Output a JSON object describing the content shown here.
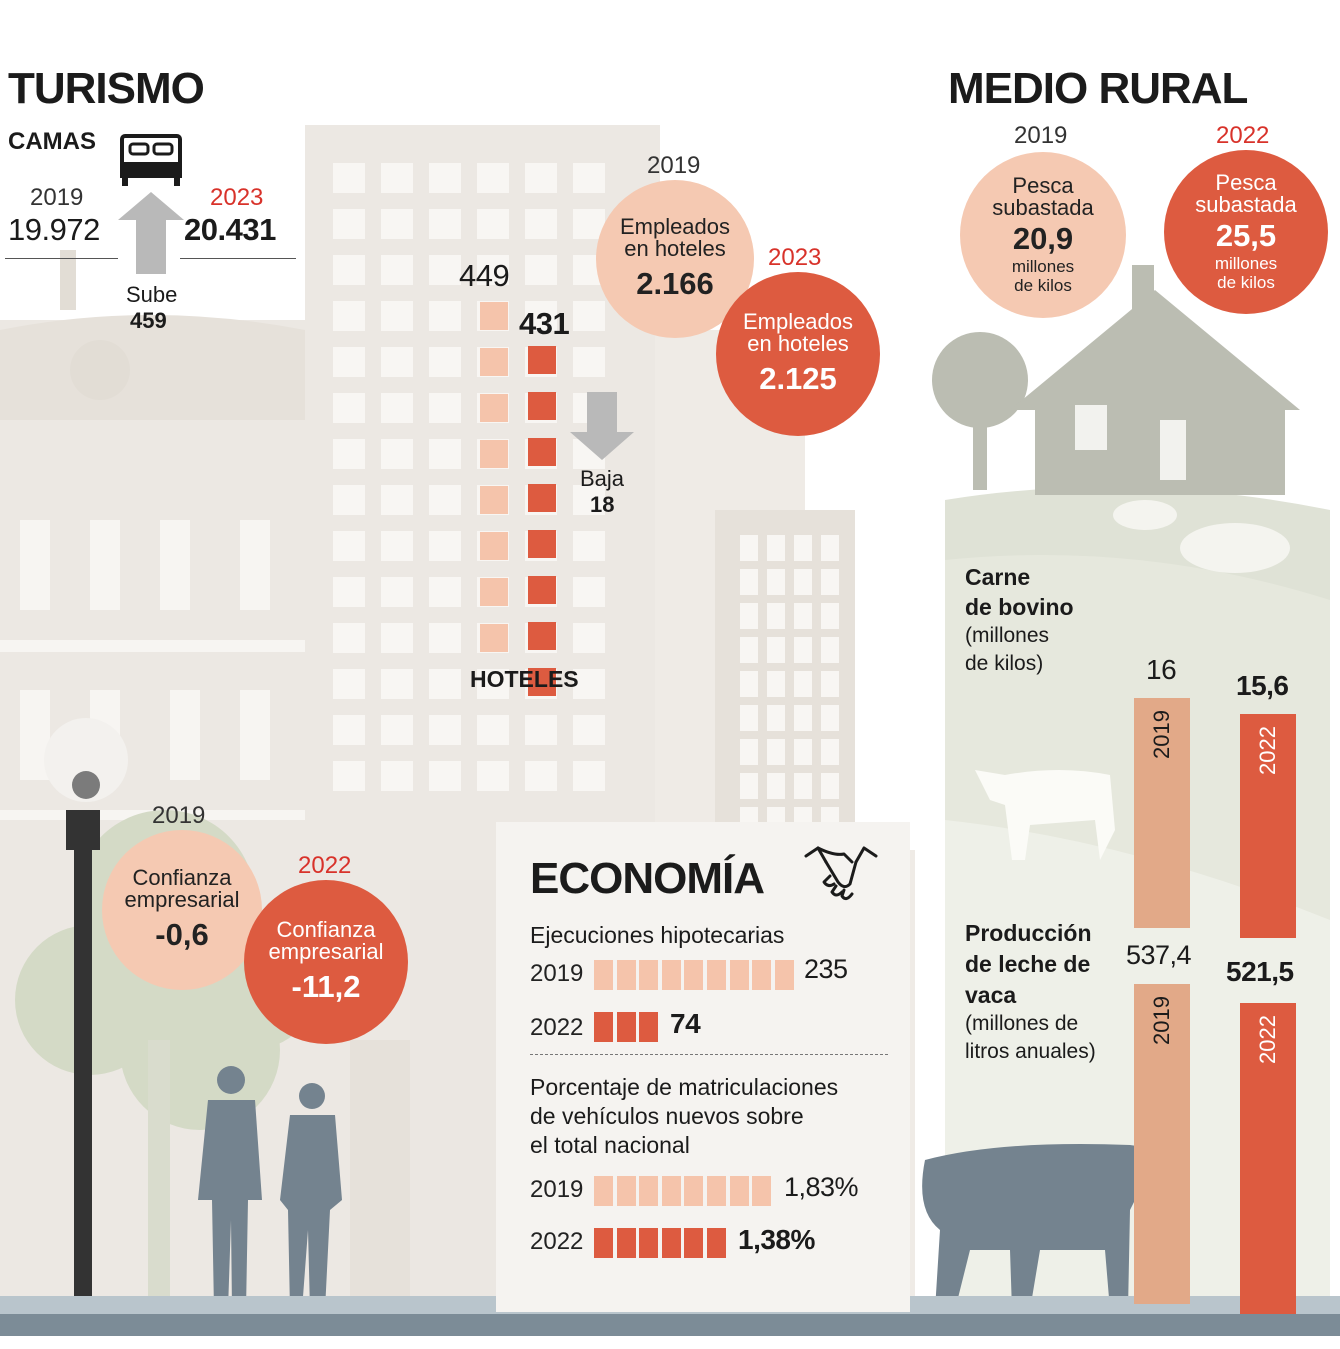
{
  "turismo": {
    "title": "TURISMO",
    "camas": {
      "label": "CAMAS",
      "year_a": "2019",
      "value_a": "19.972",
      "year_b": "2023",
      "value_b": "20.431",
      "change_label": "Sube",
      "change_value": "459"
    },
    "hoteles": {
      "label": "HOTELES",
      "value_a": "449",
      "value_b": "431",
      "change_label": "Baja",
      "change_value": "18"
    },
    "empleados": {
      "year_a": "2019",
      "label_a_1": "Empleados",
      "label_a_2": "en hoteles",
      "value_a": "2.166",
      "year_b": "2023",
      "label_b_1": "Empleados",
      "label_b_2": "en hoteles",
      "value_b": "2.125"
    },
    "confianza": {
      "year_a": "2019",
      "label_a_1": "Confianza",
      "label_a_2": "empresarial",
      "value_a": "-0,6",
      "year_b": "2022",
      "label_b_1": "Confianza",
      "label_b_2": "empresarial",
      "value_b": "-11,2"
    }
  },
  "economia": {
    "title": "ECONOMÍA",
    "hipotecas": {
      "label": "Ejecuciones hipotecarias",
      "year_a": "2019",
      "value_a": "235",
      "year_b": "2022",
      "value_b": "74"
    },
    "matriculaciones": {
      "label_1": "Porcentaje de matriculaciones",
      "label_2": "de vehículos nuevos sobre",
      "label_3": "el total nacional",
      "year_a": "2019",
      "value_a": "1,83%",
      "year_b": "2022",
      "value_b": "1,38%"
    }
  },
  "medio_rural": {
    "title": "MEDIO RURAL",
    "pesca": {
      "year_a": "2019",
      "label_a_1": "Pesca",
      "label_a_2": "subastada",
      "value_a": "20,9",
      "unit_a_1": "millones",
      "unit_a_2": "de kilos",
      "year_b": "2022",
      "label_b_1": "Pesca",
      "label_b_2": "subastada",
      "value_b": "25,5",
      "unit_b_1": "millones",
      "unit_b_2": "de kilos"
    },
    "bovino": {
      "label_1": "Carne",
      "label_2": "de bovino",
      "unit_1": "(millones",
      "unit_2": "de kilos)",
      "year_a": "2019",
      "value_a": "16",
      "year_b": "2022",
      "value_b": "15,6"
    },
    "leche": {
      "label_1": "Producción",
      "label_2": "de leche de",
      "label_3": "vaca",
      "unit_1": "(millones de",
      "unit_2": "litros anuales)",
      "year_a": "2019",
      "value_a": "537,4",
      "year_b": "2022",
      "value_b": "521,5"
    }
  },
  "colors": {
    "light": "#f5c4ab",
    "dark": "#dd5b40",
    "tan": "#e2a988",
    "red": "#d8322a",
    "grey_bg": "#ece8e3",
    "green_bg": "#d8ddcc",
    "silhouette": "#74838f"
  },
  "chart_data": [
    {
      "type": "bar",
      "title": "CAMAS",
      "categories": [
        "2019",
        "2023"
      ],
      "values": [
        19972,
        20431
      ]
    },
    {
      "type": "bar",
      "title": "HOTELES",
      "categories": [
        "2019",
        "2023"
      ],
      "values": [
        449,
        431
      ]
    },
    {
      "type": "bar",
      "title": "Empleados en hoteles",
      "categories": [
        "2019",
        "2023"
      ],
      "values": [
        2166,
        2125
      ]
    },
    {
      "type": "bar",
      "title": "Confianza empresarial",
      "categories": [
        "2019",
        "2022"
      ],
      "values": [
        -0.6,
        -11.2
      ]
    },
    {
      "type": "bar",
      "title": "Ejecuciones hipotecarias",
      "categories": [
        "2019",
        "2022"
      ],
      "values": [
        235,
        74
      ]
    },
    {
      "type": "bar",
      "title": "Porcentaje de matriculaciones de vehículos nuevos sobre el total nacional",
      "categories": [
        "2019",
        "2022"
      ],
      "values": [
        1.83,
        1.38
      ]
    },
    {
      "type": "bar",
      "title": "Pesca subastada",
      "categories": [
        "2019",
        "2022"
      ],
      "values": [
        20.9,
        25.5
      ]
    },
    {
      "type": "bar",
      "title": "Carne de bovino",
      "categories": [
        "2019",
        "2022"
      ],
      "values": [
        16,
        15.6
      ]
    },
    {
      "type": "bar",
      "title": "Producción de leche de vaca",
      "categories": [
        "2019",
        "2022"
      ],
      "values": [
        537.4,
        521.5
      ]
    }
  ]
}
